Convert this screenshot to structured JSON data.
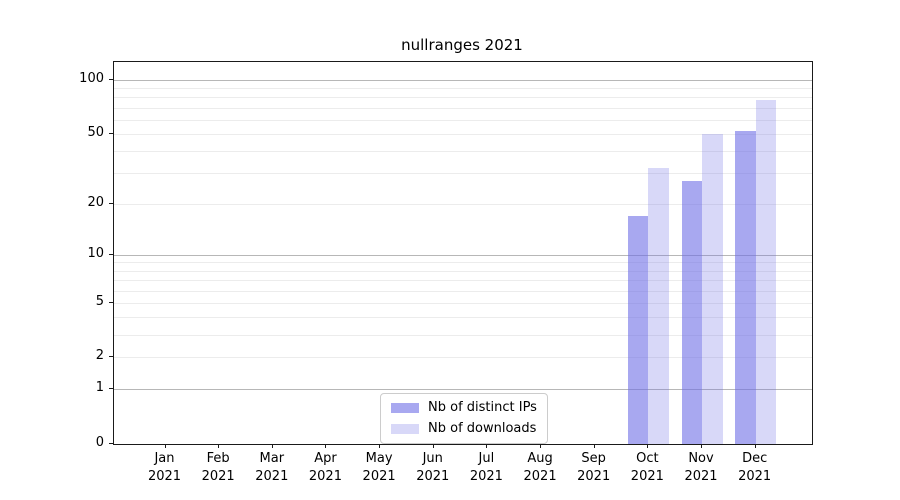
{
  "figure": {
    "title": "nullranges 2021",
    "background": "#ffffff"
  },
  "chart_data": {
    "type": "bar",
    "title": "nullranges 2021",
    "categories": [
      "Jan",
      "Feb",
      "Mar",
      "Apr",
      "May",
      "Jun",
      "Jul",
      "Aug",
      "Sep",
      "Oct",
      "Nov",
      "Dec"
    ],
    "year": "2021",
    "series": [
      {
        "name": "Nb of distinct IPs",
        "color": "rgba(110,110,230,0.6)",
        "values": [
          null,
          null,
          null,
          null,
          null,
          null,
          null,
          null,
          null,
          17,
          27,
          52
        ]
      },
      {
        "name": "Nb of downloads",
        "color": "rgba(110,110,230,0.27)",
        "values": [
          null,
          null,
          null,
          null,
          null,
          null,
          null,
          null,
          null,
          32,
          50,
          77
        ]
      }
    ],
    "y_axis": {
      "scale": "log1p",
      "ticks": [
        0,
        1,
        2,
        5,
        10,
        20,
        50,
        100
      ],
      "top_value": 126,
      "major_grid": [
        1,
        10,
        100
      ],
      "minor_grid": [
        2,
        3,
        4,
        5,
        6,
        7,
        8,
        9,
        20,
        30,
        40,
        50,
        60,
        70,
        80,
        90
      ]
    },
    "x_axis": {
      "tick_labels": [
        "Jan 2021",
        "Feb 2021",
        "Mar 2021",
        "Apr 2021",
        "May 2021",
        "Jun 2021",
        "Jul 2021",
        "Aug 2021",
        "Sep 2021",
        "Oct 2021",
        "Nov 2021",
        "Dec 2021"
      ]
    },
    "legend": {
      "position": "lower-center",
      "border_color": "#cccccc"
    },
    "grid": true,
    "colors": {
      "major_grid": "#b7b7b7",
      "minor_grid": "#ececec",
      "spine": "#1a1a1a"
    }
  }
}
